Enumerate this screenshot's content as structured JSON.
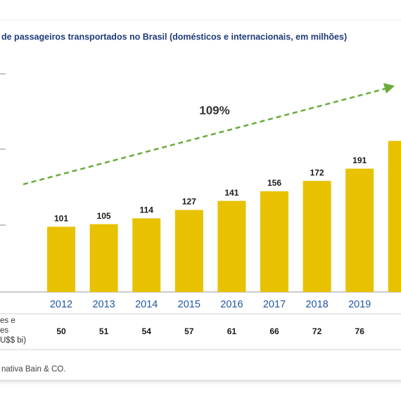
{
  "chart_data": {
    "type": "bar",
    "title": "de passageiros transportados no Brasil (domésticos e internacionais, em milhões)",
    "categories": [
      "2012",
      "2013",
      "2014",
      "2015",
      "2016",
      "2017",
      "2018",
      "2019",
      null
    ],
    "values": [
      101,
      105,
      114,
      127,
      141,
      156,
      172,
      191,
      234
    ],
    "color": "#e8c100",
    "ylim": [
      0,
      340
    ],
    "annotation": "109%",
    "arrow_color": "#6aab3a"
  },
  "table": {
    "label_lines": [
      "es e",
      "es",
      "U$$ bi)"
    ],
    "values": [
      "50",
      "51",
      "54",
      "57",
      "61",
      "66",
      "72",
      "76"
    ]
  },
  "footer": "nativa Bain & CO."
}
